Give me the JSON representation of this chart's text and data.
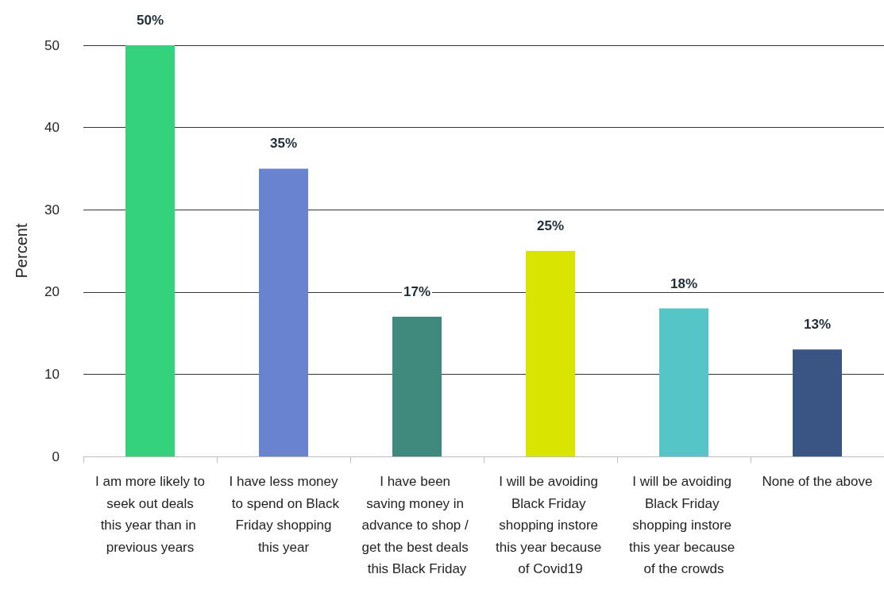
{
  "chart_data": {
    "type": "bar",
    "ylabel": "Percent",
    "categories": [
      "I am more likely to seek out deals this year than in previous years",
      "I have less money to spend on Black Friday shopping this year",
      "I have been saving money in advance to shop / get the best deals this Black Friday",
      "I will be avoiding Black Friday shopping instore this year because of Covid19",
      "I will be avoiding Black Friday shopping instore this year because of the crowds",
      "None of the above"
    ],
    "values": [
      50,
      35,
      17,
      25,
      18,
      13
    ],
    "value_labels": [
      "50%",
      "35%",
      "17%",
      "25%",
      "18%",
      "13%"
    ],
    "colors": [
      "#34d27c",
      "#6a83d0",
      "#3f8a7c",
      "#d9e500",
      "#55c5c8",
      "#3a5584"
    ],
    "ylim": [
      0,
      50
    ],
    "yticks": [
      0,
      10,
      20,
      30,
      40,
      50
    ],
    "grid": "y"
  }
}
